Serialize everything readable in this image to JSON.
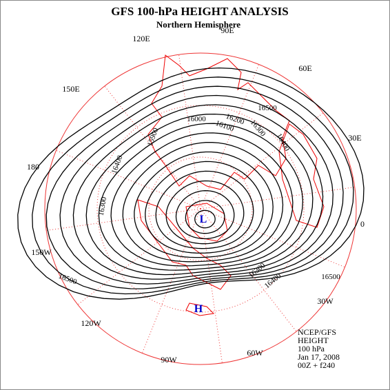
{
  "header": {
    "title": "GFS 100-hPa HEIGHT ANALYSIS",
    "subtitle": "Northern Hemisphere"
  },
  "longitude_labels": [
    "90E",
    "120E",
    "60E",
    "150E",
    "30E",
    "180",
    "0",
    "150W",
    "30W",
    "120W",
    "90W",
    "60W"
  ],
  "contour_labels": [
    "16500",
    "16400",
    "16300",
    "16200",
    "16100",
    "16000",
    "15900",
    "16400",
    "16300",
    "16500",
    "16500",
    "16400",
    "16300"
  ],
  "pressure_centers": [
    {
      "label": "L"
    },
    {
      "label": "H"
    }
  ],
  "info": [
    "NCEP/GFS",
    "HEIGHT",
    "100 hPa",
    "Jan 17, 2008",
    "00Z + f240"
  ]
}
